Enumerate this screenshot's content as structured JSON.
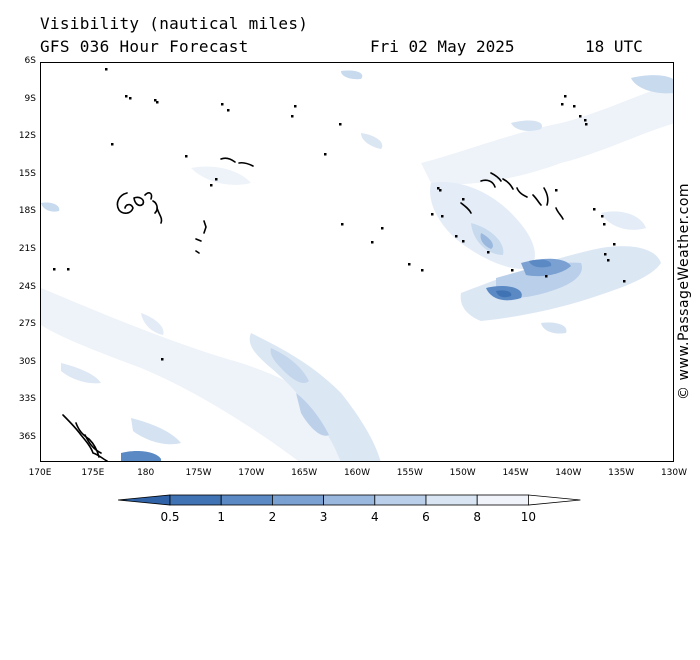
{
  "title": {
    "line1": "Visibility (nautical miles)",
    "line2": "GFS 036 Hour Forecast",
    "date": "Fri 02 May 2025",
    "time": "18 UTC"
  },
  "copyright": "© www.PassageWeather.com",
  "map": {
    "lat_labels": [
      "6S",
      "9S",
      "12S",
      "15S",
      "18S",
      "21S",
      "24S",
      "27S",
      "30S",
      "33S",
      "36S"
    ],
    "lon_labels": [
      "170E",
      "175E",
      "180",
      "175W",
      "170W",
      "165W",
      "160W",
      "155W",
      "150W",
      "145W",
      "140W",
      "135W",
      "130W"
    ]
  },
  "legend": {
    "labels": [
      "0.5",
      "1",
      "2",
      "3",
      "4",
      "6",
      "8",
      "10"
    ],
    "colors": [
      "#3f73b4",
      "#5b89c4",
      "#7aa1d2",
      "#9ab8de",
      "#bacfe9",
      "#d9e5f3",
      "#f0f4fa",
      "#ffffff"
    ]
  }
}
